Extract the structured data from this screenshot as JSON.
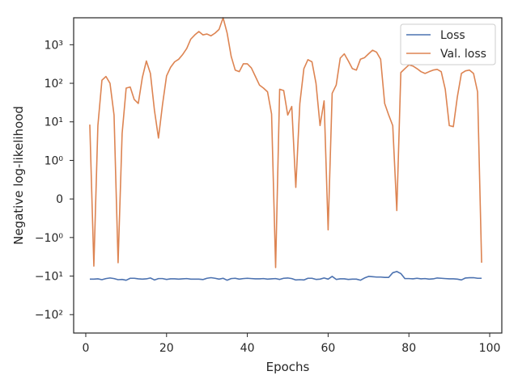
{
  "chart_data": {
    "type": "line",
    "xlabel": "Epochs",
    "ylabel": "Negative log-likelihood",
    "xlim": [
      -3,
      103
    ],
    "y_scale": "symlog",
    "ylim": [
      -300,
      5000
    ],
    "grid": false,
    "legend_position": "top-right",
    "x_ticks": [
      0,
      20,
      40,
      60,
      80,
      100
    ],
    "x_tick_labels": [
      "0",
      "20",
      "40",
      "60",
      "80",
      "100"
    ],
    "y_ticks": [
      -100,
      -10,
      -1,
      0,
      1,
      10,
      100,
      1000
    ],
    "y_tick_labels": [
      "−10²",
      "−10¹",
      "−10⁰",
      "0",
      "10⁰",
      "10¹",
      "10²",
      "10³"
    ],
    "x": [
      1,
      2,
      3,
      4,
      5,
      6,
      7,
      8,
      9,
      10,
      11,
      12,
      13,
      14,
      15,
      16,
      17,
      18,
      19,
      20,
      21,
      22,
      23,
      24,
      25,
      26,
      27,
      28,
      29,
      30,
      31,
      32,
      33,
      34,
      35,
      36,
      37,
      38,
      39,
      40,
      41,
      42,
      43,
      44,
      45,
      46,
      47,
      48,
      49,
      50,
      51,
      52,
      53,
      54,
      55,
      56,
      57,
      58,
      59,
      60,
      61,
      62,
      63,
      64,
      65,
      66,
      67,
      68,
      69,
      70,
      71,
      72,
      73,
      74,
      75,
      76,
      77,
      78,
      79,
      80,
      81,
      82,
      83,
      84,
      85,
      86,
      87,
      88,
      89,
      90,
      91,
      92,
      93,
      94,
      95,
      96,
      97,
      98
    ],
    "series": [
      {
        "name": "Loss",
        "color": "#4c72b0",
        "values": [
          -12.0,
          -12.0,
          -11.8,
          -12.4,
          -11.6,
          -11.2,
          -11.6,
          -12.4,
          -12.2,
          -12.8,
          -11.4,
          -11.4,
          -11.8,
          -12.0,
          -11.8,
          -11.2,
          -12.6,
          -11.6,
          -11.6,
          -12.2,
          -11.8,
          -11.8,
          -12.0,
          -11.8,
          -11.6,
          -12.0,
          -12.0,
          -12.0,
          -12.3,
          -11.4,
          -11.0,
          -11.4,
          -12.0,
          -11.4,
          -12.8,
          -11.6,
          -11.4,
          -12.0,
          -11.6,
          -11.4,
          -11.6,
          -11.8,
          -11.8,
          -11.6,
          -12.0,
          -11.8,
          -11.6,
          -12.2,
          -11.4,
          -11.2,
          -11.6,
          -12.6,
          -12.4,
          -12.6,
          -11.4,
          -11.4,
          -12.2,
          -12.0,
          -11.2,
          -12.0,
          -10.2,
          -12.2,
          -11.8,
          -11.8,
          -12.2,
          -12.0,
          -12.0,
          -12.8,
          -11.2,
          -10.2,
          -10.4,
          -10.6,
          -10.6,
          -10.8,
          -10.8,
          -8.2,
          -7.6,
          -8.6,
          -11.6,
          -11.6,
          -11.8,
          -11.4,
          -11.8,
          -11.6,
          -12.0,
          -11.8,
          -11.2,
          -11.4,
          -11.6,
          -11.8,
          -11.8,
          -12.0,
          -12.6,
          -11.2,
          -11.0,
          -11.0,
          -11.4,
          -11.4
        ]
      },
      {
        "name": "Val. loss",
        "color": "#dd8452",
        "values": [
          8.5,
          -5.5,
          8,
          120,
          150,
          100,
          15,
          -4.5,
          5,
          75,
          80,
          38,
          30,
          140,
          380,
          180,
          20,
          3.8,
          28,
          155,
          260,
          360,
          420,
          560,
          800,
          1400,
          1800,
          2200,
          1800,
          1900,
          1700,
          2000,
          2500,
          5000,
          2000,
          500,
          220,
          200,
          320,
          320,
          250,
          150,
          90,
          75,
          60,
          16,
          -6,
          70,
          65,
          15,
          25,
          0.3,
          30,
          240,
          410,
          360,
          100,
          8,
          35,
          -0.8,
          55,
          90,
          450,
          580,
          380,
          240,
          220,
          420,
          460,
          580,
          720,
          640,
          420,
          30,
          15,
          8,
          -0.3,
          190,
          240,
          300,
          280,
          240,
          200,
          180,
          200,
          220,
          230,
          200,
          70,
          8,
          7.5,
          45,
          180,
          210,
          220,
          180,
          60,
          -4.5
        ]
      }
    ]
  }
}
